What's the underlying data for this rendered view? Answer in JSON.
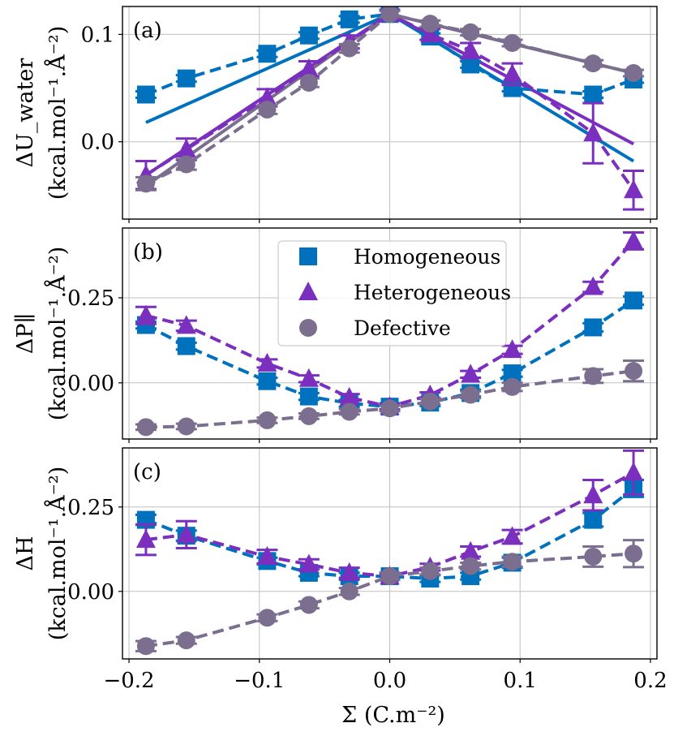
{
  "chart_data": {
    "type": "line",
    "x_ticks": [
      "−0.2",
      "−0.1",
      "0.0",
      "0.1",
      "0.2"
    ],
    "xlim": [
      -0.205,
      0.205
    ],
    "xlabel": "Σ (C.m⁻²)",
    "x": [
      -0.187,
      -0.156,
      -0.094,
      -0.062,
      -0.031,
      0.0,
      0.031,
      0.062,
      0.094,
      0.156,
      0.187
    ],
    "colors": {
      "Homogeneous": "#0072bd",
      "Heterogeneous": "#7b2fbe",
      "Defective": "#7b6e8e",
      "grid": "#bfbfbf"
    },
    "legend": [
      {
        "label": "Homogeneous",
        "marker": "square"
      },
      {
        "label": "Heterogeneous",
        "marker": "triangle"
      },
      {
        "label": "Defective",
        "marker": "circle"
      }
    ],
    "panels": [
      {
        "label": "(a)",
        "ylabel": "ΔU_water",
        "yunit": "(kcal.mol⁻¹.Å⁻²)",
        "ylim": [
          -0.072,
          0.126
        ],
        "y_ticks": [
          {
            "v": 0.0,
            "t": "0.0"
          },
          {
            "v": 0.1,
            "t": "0.1"
          }
        ],
        "series": [
          {
            "name": "Homogeneous",
            "values": [
              0.044,
              0.059,
              0.082,
              0.099,
              0.114,
              0.119,
              0.098,
              0.072,
              0.05,
              0.044,
              0.058
            ],
            "err": [
              0.003,
              0.003,
              0.003,
              0.003,
              0.003,
              0.003,
              0.003,
              0.003,
              0.003,
              0.003,
              0.003
            ]
          },
          {
            "name": "Heterogeneous",
            "values": [
              -0.031,
              -0.007,
              0.041,
              0.068,
              0.093,
              0.119,
              0.1,
              0.085,
              0.063,
              0.008,
              -0.045
            ],
            "err": [
              0.013,
              0.01,
              0.008,
              0.007,
              0.006,
              0.004,
              0.005,
              0.007,
              0.01,
              0.028,
              0.018
            ]
          },
          {
            "name": "Defective",
            "values": [
              -0.039,
              -0.021,
              0.03,
              0.055,
              0.087,
              0.119,
              0.11,
              0.102,
              0.092,
              0.073,
              0.064
            ],
            "err": [
              0.006,
              0.005,
              0.004,
              0.004,
              0.004,
              0.003,
              0.003,
              0.003,
              0.003,
              0.003,
              0.003
            ]
          }
        ],
        "fits": [
          {
            "name": "Homogeneous",
            "x": [
              -0.187,
              0.0,
              0.187
            ],
            "y": [
              0.018,
              0.119,
              -0.018
            ]
          },
          {
            "name": "Heterogeneous",
            "x": [
              -0.187,
              0.0,
              0.187
            ],
            "y": [
              -0.031,
              0.119,
              -0.002
            ]
          },
          {
            "name": "Defective",
            "x": [
              -0.187,
              0.0,
              0.187
            ],
            "y": [
              -0.041,
              0.119,
              0.064
            ]
          }
        ]
      },
      {
        "label": "(b)",
        "ylabel": "ΔP∥",
        "yunit": "(kcal.mol⁻¹.Å⁻²)",
        "ylim": [
          -0.165,
          0.455
        ],
        "y_ticks": [
          {
            "v": 0.0,
            "t": "0.00"
          },
          {
            "v": 0.25,
            "t": "0.25"
          }
        ],
        "series": [
          {
            "name": "Homogeneous",
            "values": [
              0.17,
              0.108,
              0.005,
              -0.04,
              -0.06,
              -0.07,
              -0.058,
              -0.03,
              0.028,
              0.163,
              0.242
            ],
            "err": [
              0.01,
              0.01,
              0.01,
              0.01,
              0.01,
              0.01,
              0.01,
              0.01,
              0.01,
              0.012,
              0.012
            ]
          },
          {
            "name": "Heterogeneous",
            "values": [
              0.198,
              0.168,
              0.057,
              0.012,
              -0.043,
              -0.07,
              -0.036,
              0.025,
              0.097,
              0.282,
              0.417
            ],
            "err": [
              0.025,
              0.015,
              0.012,
              0.01,
              0.01,
              0.008,
              0.008,
              0.01,
              0.012,
              0.015,
              0.025
            ]
          },
          {
            "name": "Defective",
            "values": [
              -0.13,
              -0.128,
              -0.11,
              -0.098,
              -0.085,
              -0.075,
              -0.055,
              -0.035,
              -0.012,
              0.02,
              0.035
            ],
            "err": [
              0.008,
              0.008,
              0.008,
              0.008,
              0.008,
              0.008,
              0.008,
              0.01,
              0.012,
              0.02,
              0.03
            ]
          }
        ]
      },
      {
        "label": "(c)",
        "ylabel": "ΔH",
        "yunit": "(kcal.mol⁻¹.Å⁻²)",
        "ylim": [
          -0.2,
          0.425
        ],
        "y_ticks": [
          {
            "v": 0.0,
            "t": "0.00"
          },
          {
            "v": 0.25,
            "t": "0.25"
          }
        ],
        "series": [
          {
            "name": "Homogeneous",
            "values": [
              0.212,
              0.165,
              0.09,
              0.055,
              0.045,
              0.045,
              0.038,
              0.045,
              0.085,
              0.212,
              0.305
            ],
            "err": [
              0.015,
              0.015,
              0.01,
              0.01,
              0.01,
              0.01,
              0.01,
              0.01,
              0.015,
              0.02,
              0.025
            ]
          },
          {
            "name": "Heterogeneous",
            "values": [
              0.153,
              0.168,
              0.103,
              0.08,
              0.055,
              0.045,
              0.072,
              0.118,
              0.162,
              0.285,
              0.352
            ],
            "err": [
              0.045,
              0.04,
              0.02,
              0.015,
              0.015,
              0.01,
              0.01,
              0.015,
              0.02,
              0.045,
              0.065
            ]
          },
          {
            "name": "Defective",
            "values": [
              -0.162,
              -0.145,
              -0.078,
              -0.04,
              0.0,
              0.045,
              0.06,
              0.075,
              0.088,
              0.103,
              0.112
            ],
            "err": [
              0.015,
              0.01,
              0.01,
              0.01,
              0.01,
              0.01,
              0.01,
              0.01,
              0.015,
              0.03,
              0.04
            ]
          }
        ]
      }
    ]
  }
}
